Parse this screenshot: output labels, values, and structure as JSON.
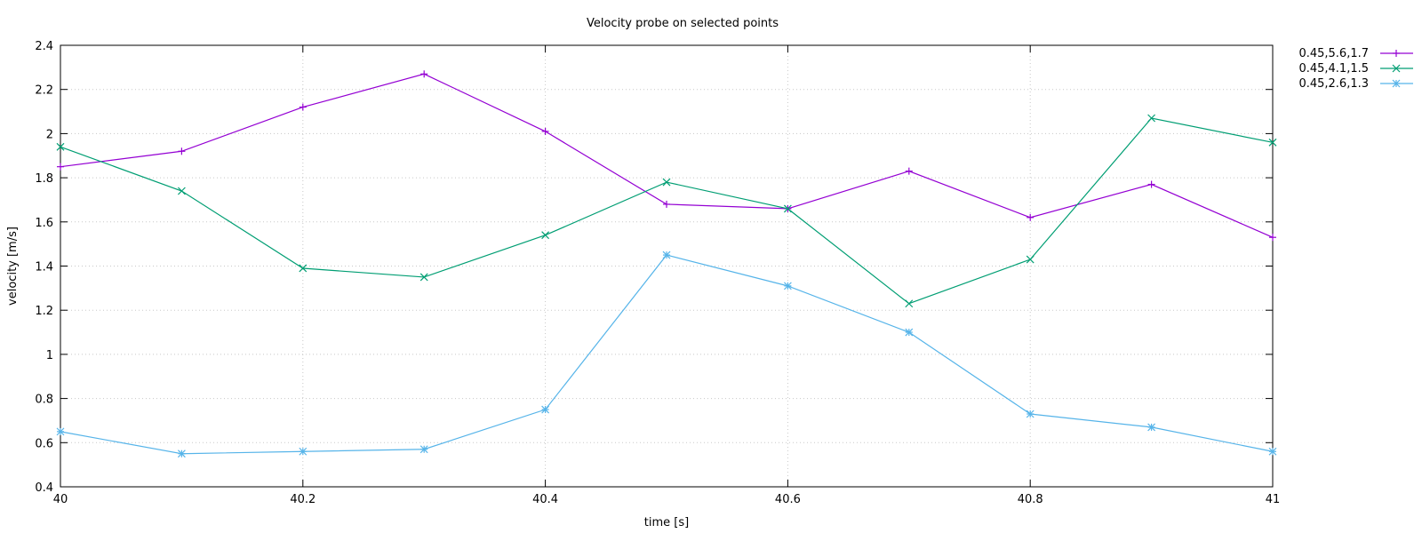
{
  "chart_data": {
    "type": "line",
    "title": "Velocity probe on selected points",
    "xlabel": "time [s]",
    "ylabel": "velocity [m/s]",
    "xlim": [
      40,
      41
    ],
    "ylim": [
      0.4,
      2.4
    ],
    "x_ticks": [
      "40",
      "40.2",
      "40.4",
      "40.6",
      "40.8",
      "41"
    ],
    "x_tick_values": [
      40,
      40.2,
      40.4,
      40.6,
      40.8,
      41
    ],
    "y_ticks": [
      "0.4",
      "0.6",
      "0.8",
      "1",
      "1.2",
      "1.4",
      "1.6",
      "1.8",
      "2",
      "2.2",
      "2.4"
    ],
    "y_tick_values": [
      0.4,
      0.6,
      0.8,
      1.0,
      1.2,
      1.4,
      1.6,
      1.8,
      2.0,
      2.2,
      2.4
    ],
    "grid": true,
    "legend_position": "outside-top-right",
    "x": [
      40.0,
      40.1,
      40.2,
      40.3,
      40.4,
      40.5,
      40.6,
      40.7,
      40.8,
      40.9,
      41.0
    ],
    "series": [
      {
        "name": "0.45,5.6,1.7",
        "color": "#9400d3",
        "marker": "plus",
        "values": [
          1.85,
          1.92,
          2.12,
          2.27,
          2.01,
          1.68,
          1.66,
          1.83,
          1.62,
          1.77,
          1.53
        ]
      },
      {
        "name": "0.45,4.1,1.5",
        "color": "#009e73",
        "marker": "cross",
        "values": [
          1.94,
          1.74,
          1.39,
          1.35,
          1.54,
          1.78,
          1.66,
          1.23,
          1.43,
          2.07,
          1.96
        ]
      },
      {
        "name": "0.45,2.6,1.3",
        "color": "#56b4e9",
        "marker": "star",
        "values": [
          0.65,
          0.55,
          0.56,
          0.57,
          0.75,
          1.45,
          1.31,
          1.1,
          0.73,
          0.67,
          0.56
        ]
      }
    ]
  }
}
